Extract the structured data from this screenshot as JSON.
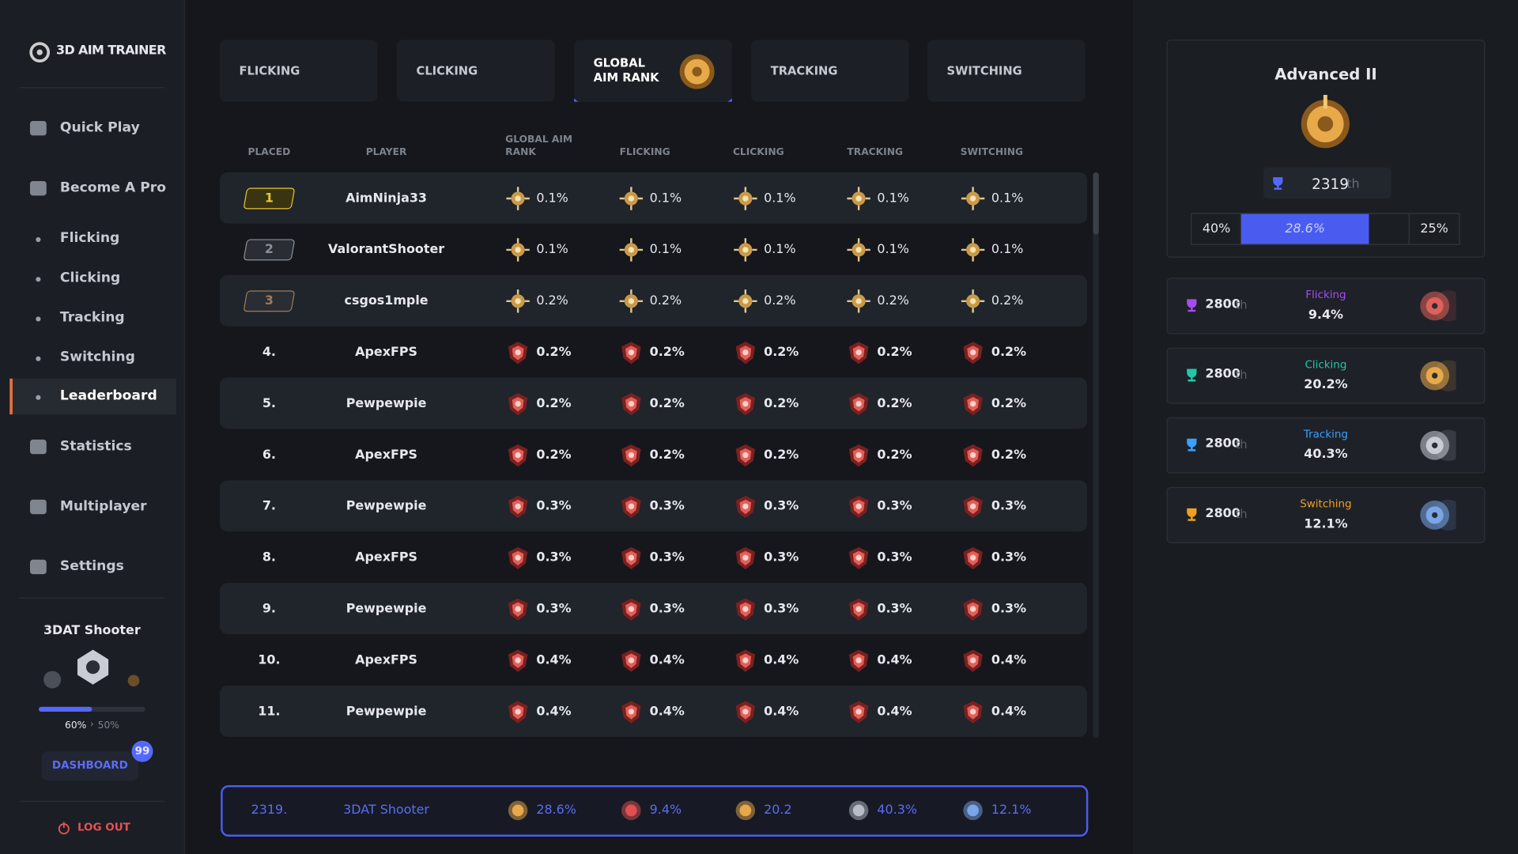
{
  "sidebar": {
    "logo": "3D AIM TRAINER",
    "nav": [
      "Quick Play",
      "Become A Pro",
      "Flicking",
      "Clicking",
      "Tracking",
      "Switching",
      "Leaderboard",
      "Statistics",
      "Multiplayer",
      "Settings"
    ],
    "profile": {
      "name": "3DAT Shooter",
      "progress": "60%",
      "separator": "›",
      "next": "50%",
      "button": "DASHBOARD",
      "badge": "99"
    },
    "logout": "LOG OUT"
  },
  "tabs": [
    "FLICKING",
    "CLICKING",
    "GLOBAL AIM RANK",
    "TRACKING",
    "SWITCHING"
  ],
  "table": {
    "headers": [
      "PLACED",
      "PLAYER",
      "GLOBAL AIM RANK",
      "FLICKING",
      "CLICKING",
      "TRACKING",
      "SWITCHING"
    ],
    "rows": [
      [
        "1",
        "AimNinja33",
        "0.1%",
        "0.1%",
        "0.1%",
        "0.1%",
        "0.1%"
      ],
      [
        "2",
        "ValorantShooter",
        "0.1%",
        "0.1%",
        "0.1%",
        "0.1%",
        "0.1%"
      ],
      [
        "3",
        "csgos1mple",
        "0.2%",
        "0.2%",
        "0.2%",
        "0.2%",
        "0.2%"
      ],
      [
        "4.",
        "ApexFPS",
        "0.2%",
        "0.2%",
        "0.2%",
        "0.2%",
        "0.2%"
      ],
      [
        "5.",
        "Pewpewpie",
        "0.2%",
        "0.2%",
        "0.2%",
        "0.2%",
        "0.2%"
      ],
      [
        "6.",
        "ApexFPS",
        "0.2%",
        "0.2%",
        "0.2%",
        "0.2%",
        "0.2%"
      ],
      [
        "7.",
        "Pewpewpie",
        "0.3%",
        "0.3%",
        "0.3%",
        "0.3%",
        "0.3%"
      ],
      [
        "8.",
        "ApexFPS",
        "0.3%",
        "0.3%",
        "0.3%",
        "0.3%",
        "0.3%"
      ],
      [
        "9.",
        "Pewpewpie",
        "0.3%",
        "0.3%",
        "0.3%",
        "0.3%",
        "0.3%"
      ],
      [
        "10.",
        "ApexFPS",
        "0.4%",
        "0.4%",
        "0.4%",
        "0.4%",
        "0.4%"
      ],
      [
        "11.",
        "Pewpewpie",
        "0.4%",
        "0.4%",
        "0.4%",
        "0.4%",
        "0.4%"
      ]
    ],
    "footer": [
      "2319.",
      "3DAT Shooter",
      "28.6%",
      "9.4%",
      "20.2",
      "40.3%",
      "12.1%"
    ]
  },
  "summary": {
    "rank_name": "Advanced II",
    "rank": "2319",
    "rank_suffix": "th",
    "bar": [
      "40%",
      "28.6%",
      "25%"
    ]
  },
  "cards": [
    {
      "rank": "2800",
      "suffix": "th",
      "name": "Flicking",
      "value": "9.4%"
    },
    {
      "rank": "2800",
      "suffix": "th",
      "name": "Clicking",
      "value": "20.2%"
    },
    {
      "rank": "2800",
      "suffix": "th",
      "name": "Tracking",
      "value": "40.3%"
    },
    {
      "rank": "2800",
      "suffix": "th",
      "name": "Switching",
      "value": "12.1%"
    }
  ]
}
